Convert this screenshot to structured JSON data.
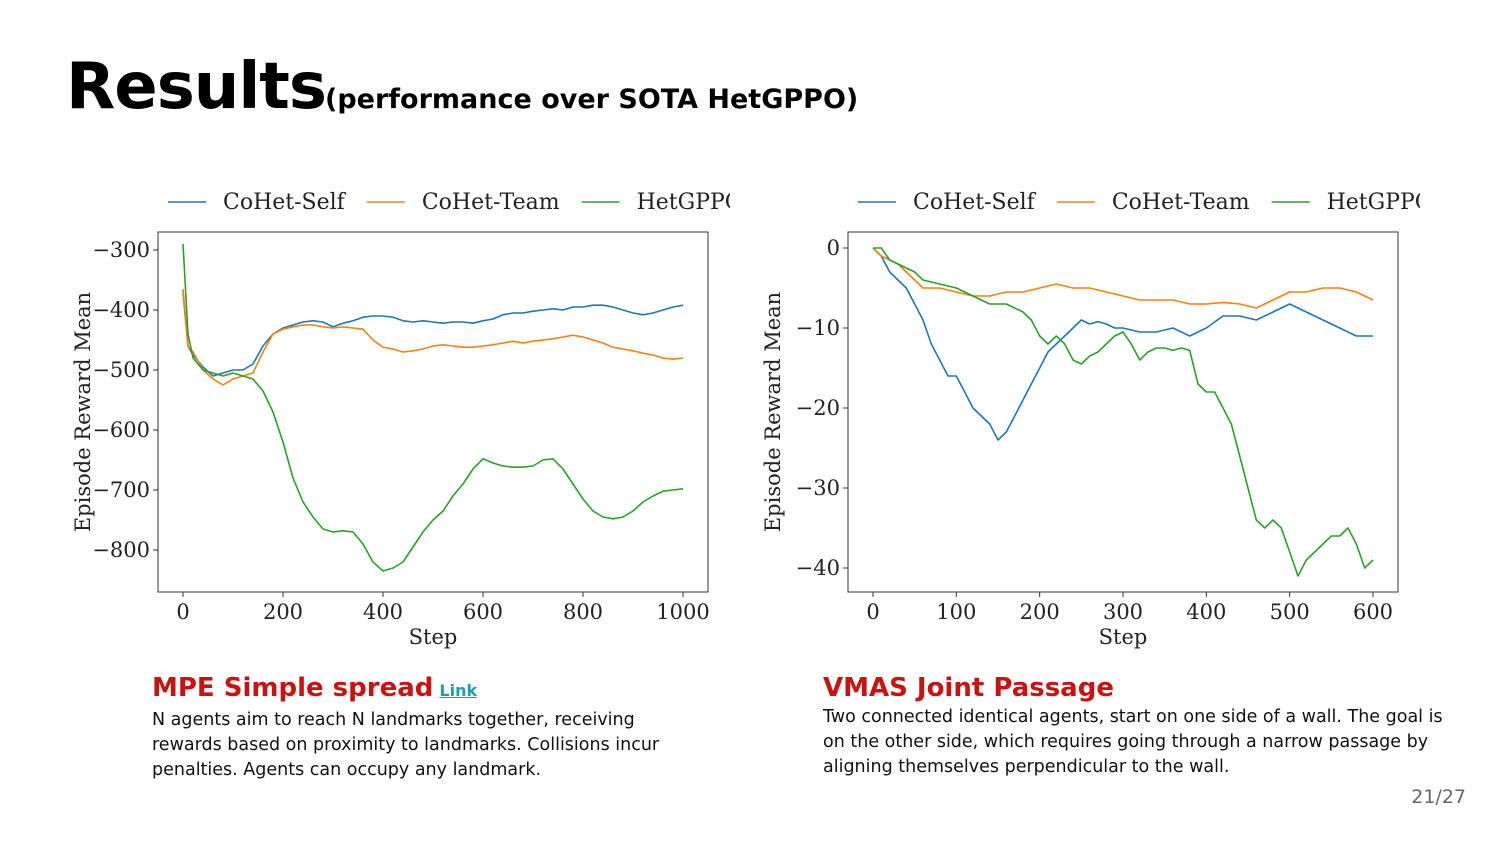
{
  "slide": {
    "title": "Results",
    "subtitle": "(performance over SOTA HetGPPO)",
    "page": "21/27"
  },
  "colors": {
    "caption_title": "#cc1111",
    "link": "#1aa0b0",
    "CoHet-Self": "#1f77b4",
    "CoHet-Team": "#ff7f0e",
    "HetGPPO": "#2ca02c"
  },
  "captions": [
    {
      "title": "MPE Simple spread",
      "link": "Link",
      "body": "N agents aim to reach N landmarks together, receiving rewards based on proximity to landmarks. Collisions incur penalties. Agents can occupy any landmark."
    },
    {
      "title": "VMAS Joint Passage",
      "body": "Two connected identical agents, start on one side of a wall. The goal is on the other side, which requires going through a narrow passage by aligning themselves perpendicular to the wall."
    }
  ],
  "chart_data": [
    {
      "type": "line",
      "title": "",
      "xlabel": "Step",
      "ylabel": "Episode Reward Mean",
      "xlim": [
        -50,
        1050
      ],
      "ylim": [
        -870,
        -270
      ],
      "xticks": [
        0,
        200,
        400,
        600,
        800,
        1000
      ],
      "yticks": [
        -300,
        -400,
        -500,
        -600,
        -700,
        -800
      ],
      "grid": false,
      "legend": "top",
      "series": [
        {
          "name": "CoHet-Self",
          "color": "#1f77b4",
          "x": [
            0,
            10,
            20,
            40,
            60,
            80,
            100,
            120,
            140,
            160,
            180,
            200,
            220,
            240,
            260,
            280,
            300,
            320,
            340,
            360,
            380,
            400,
            420,
            440,
            460,
            480,
            500,
            520,
            540,
            560,
            580,
            600,
            620,
            640,
            660,
            680,
            700,
            720,
            740,
            760,
            780,
            800,
            820,
            840,
            860,
            880,
            900,
            920,
            940,
            960,
            980,
            1000
          ],
          "y": [
            -370,
            -460,
            -475,
            -495,
            -510,
            -505,
            -500,
            -500,
            -490,
            -460,
            -440,
            -430,
            -425,
            -420,
            -418,
            -420,
            -428,
            -422,
            -418,
            -412,
            -410,
            -410,
            -412,
            -418,
            -420,
            -418,
            -420,
            -422,
            -420,
            -420,
            -422,
            -418,
            -415,
            -408,
            -405,
            -405,
            -402,
            -400,
            -398,
            -400,
            -395,
            -395,
            -392,
            -392,
            -395,
            -400,
            -405,
            -408,
            -405,
            -400,
            -395,
            -392
          ]
        },
        {
          "name": "CoHet-Team",
          "color": "#ff7f0e",
          "x": [
            0,
            10,
            20,
            40,
            60,
            80,
            100,
            120,
            140,
            160,
            180,
            200,
            220,
            240,
            260,
            280,
            300,
            320,
            340,
            360,
            380,
            400,
            420,
            440,
            460,
            480,
            500,
            520,
            540,
            560,
            580,
            600,
            620,
            640,
            660,
            680,
            700,
            720,
            740,
            760,
            780,
            800,
            820,
            840,
            860,
            880,
            900,
            920,
            940,
            960,
            980,
            1000
          ],
          "y": [
            -365,
            -460,
            -470,
            -500,
            -515,
            -525,
            -515,
            -510,
            -505,
            -470,
            -440,
            -432,
            -428,
            -425,
            -425,
            -428,
            -430,
            -428,
            -430,
            -432,
            -450,
            -462,
            -465,
            -470,
            -468,
            -465,
            -460,
            -458,
            -460,
            -462,
            -462,
            -460,
            -458,
            -455,
            -452,
            -455,
            -452,
            -450,
            -448,
            -445,
            -442,
            -445,
            -450,
            -455,
            -462,
            -465,
            -468,
            -472,
            -475,
            -480,
            -482,
            -480
          ]
        },
        {
          "name": "HetGPPO",
          "color": "#2ca02c",
          "x": [
            0,
            10,
            20,
            40,
            60,
            80,
            100,
            120,
            140,
            160,
            180,
            200,
            220,
            240,
            260,
            280,
            300,
            320,
            340,
            360,
            380,
            400,
            420,
            440,
            460,
            480,
            500,
            520,
            540,
            560,
            580,
            600,
            620,
            640,
            660,
            680,
            700,
            720,
            740,
            760,
            780,
            800,
            820,
            840,
            860,
            880,
            900,
            920,
            940,
            960,
            980,
            1000
          ],
          "y": [
            -290,
            -440,
            -480,
            -500,
            -505,
            -510,
            -505,
            -510,
            -515,
            -535,
            -570,
            -620,
            -680,
            -720,
            -745,
            -765,
            -770,
            -768,
            -770,
            -790,
            -820,
            -835,
            -830,
            -820,
            -795,
            -770,
            -750,
            -735,
            -710,
            -690,
            -665,
            -648,
            -655,
            -660,
            -662,
            -662,
            -660,
            -650,
            -648,
            -665,
            -690,
            -715,
            -735,
            -745,
            -748,
            -745,
            -735,
            -720,
            -710,
            -702,
            -700,
            -698
          ]
        }
      ]
    },
    {
      "type": "line",
      "title": "",
      "xlabel": "Step",
      "ylabel": "Episode Reward Mean",
      "xlim": [
        -30,
        630
      ],
      "ylim": [
        -43,
        2
      ],
      "xticks": [
        0,
        100,
        200,
        300,
        400,
        500,
        600
      ],
      "yticks": [
        0,
        -10,
        -20,
        -30,
        -40
      ],
      "grid": false,
      "legend": "top",
      "series": [
        {
          "name": "CoHet-Self",
          "color": "#1f77b4",
          "x": [
            0,
            10,
            20,
            30,
            40,
            50,
            60,
            70,
            80,
            90,
            100,
            110,
            120,
            130,
            140,
            150,
            160,
            170,
            180,
            190,
            200,
            210,
            220,
            230,
            240,
            250,
            260,
            270,
            280,
            290,
            300,
            320,
            340,
            360,
            380,
            400,
            420,
            440,
            460,
            480,
            500,
            520,
            540,
            560,
            580,
            600
          ],
          "y": [
            0,
            -1,
            -3,
            -4,
            -5,
            -7,
            -9,
            -12,
            -14,
            -16,
            -16,
            -18,
            -20,
            -21,
            -22,
            -24,
            -23,
            -21,
            -19,
            -17,
            -15,
            -13,
            -12,
            -11,
            -10,
            -9,
            -9.5,
            -9.2,
            -9.5,
            -10,
            -10,
            -10.5,
            -10.5,
            -10,
            -11,
            -10,
            -8.5,
            -8.5,
            -9,
            -8,
            -7,
            -8,
            -9,
            -10,
            -11,
            -11
          ]
        },
        {
          "name": "CoHet-Team",
          "color": "#ff7f0e",
          "x": [
            0,
            10,
            20,
            30,
            40,
            50,
            60,
            80,
            100,
            120,
            140,
            160,
            180,
            200,
            220,
            240,
            260,
            280,
            300,
            320,
            340,
            360,
            380,
            400,
            420,
            440,
            460,
            480,
            500,
            520,
            540,
            560,
            580,
            600
          ],
          "y": [
            0,
            -1,
            -1.5,
            -2,
            -3,
            -4,
            -5,
            -5,
            -5.5,
            -6,
            -6,
            -5.5,
            -5.5,
            -5,
            -4.5,
            -5,
            -5,
            -5.5,
            -6,
            -6.5,
            -6.5,
            -6.5,
            -7,
            -7,
            -6.8,
            -7,
            -7.5,
            -6.5,
            -5.5,
            -5.5,
            -5,
            -5,
            -5.5,
            -6.5
          ]
        },
        {
          "name": "HetGPPO",
          "color": "#2ca02c",
          "x": [
            0,
            10,
            20,
            30,
            40,
            50,
            60,
            80,
            100,
            120,
            140,
            160,
            180,
            190,
            200,
            210,
            220,
            230,
            240,
            250,
            260,
            270,
            280,
            290,
            300,
            310,
            320,
            330,
            340,
            350,
            360,
            370,
            380,
            390,
            400,
            410,
            420,
            430,
            440,
            450,
            460,
            470,
            480,
            490,
            500,
            510,
            520,
            530,
            540,
            550,
            560,
            570,
            580,
            590,
            600
          ],
          "y": [
            0,
            0,
            -1.5,
            -2,
            -2.5,
            -3,
            -4,
            -4.5,
            -5,
            -6,
            -7,
            -7,
            -8,
            -9,
            -11,
            -12,
            -11,
            -12,
            -14,
            -14.5,
            -13.5,
            -13,
            -12,
            -11,
            -10.5,
            -12,
            -14,
            -13,
            -12.5,
            -12.5,
            -12.8,
            -12.5,
            -12.8,
            -17,
            -18,
            -18,
            -20,
            -22,
            -26,
            -30,
            -34,
            -35,
            -34,
            -35,
            -38,
            -41,
            -39,
            -38,
            -37,
            -36,
            -36,
            -35,
            -37,
            -40,
            -39
          ]
        }
      ]
    }
  ]
}
